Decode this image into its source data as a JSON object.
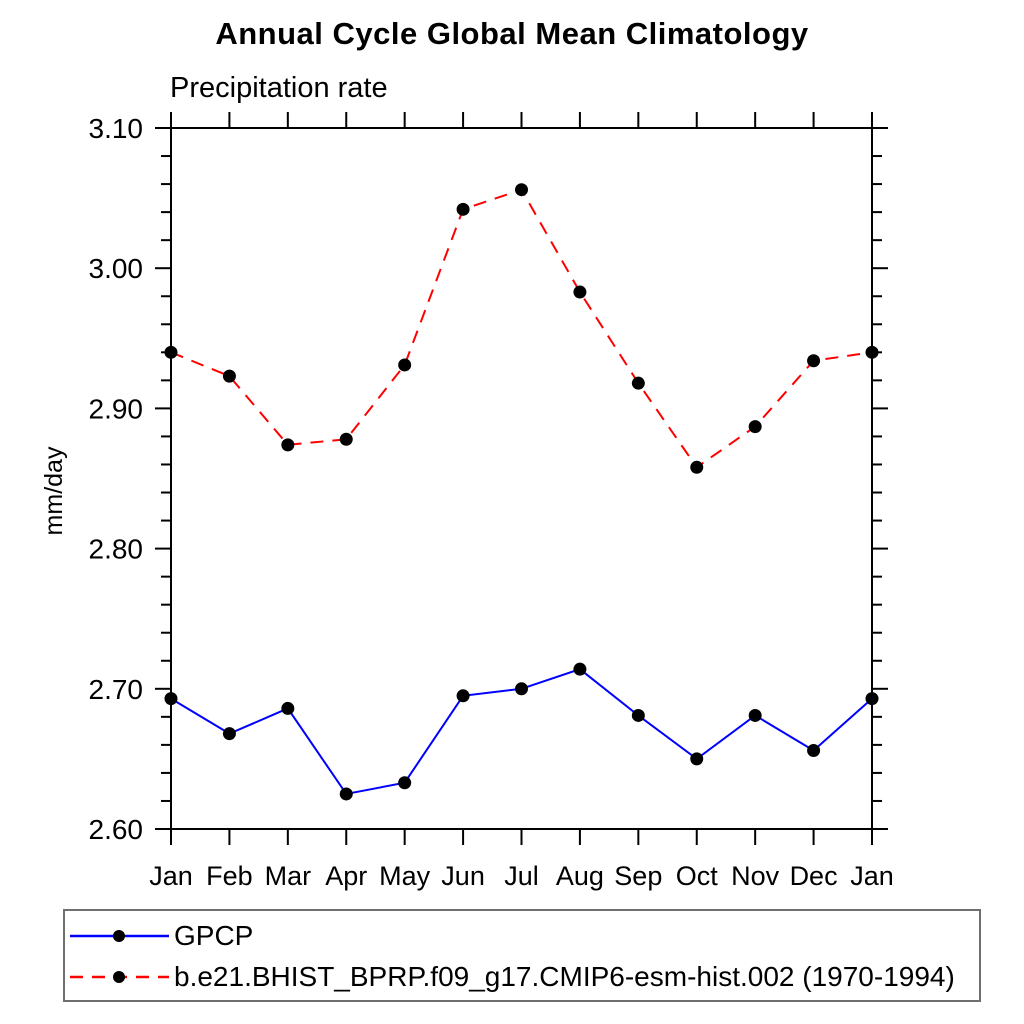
{
  "chart_data": {
    "type": "line",
    "title": "Annual Cycle Global Mean Climatology",
    "subtitle": "Precipitation rate",
    "xlabel": "",
    "ylabel": "mm/day",
    "categories": [
      "Jan",
      "Feb",
      "Mar",
      "Apr",
      "May",
      "Jun",
      "Jul",
      "Aug",
      "Sep",
      "Oct",
      "Nov",
      "Dec",
      "Jan"
    ],
    "ylim": [
      2.6,
      3.1
    ],
    "ytick_major": 0.1,
    "ytick_minor": 0.02,
    "y_tick_labels": [
      "2.60",
      "2.70",
      "2.80",
      "2.90",
      "3.00",
      "3.10"
    ],
    "grid": false,
    "legend_position": "bottom-left-box",
    "frame_color": "#000000",
    "series": [
      {
        "name": "GPCP",
        "color": "#0000ff",
        "line_style": "solid",
        "marker": "circle",
        "marker_color": "#000000",
        "values": [
          2.693,
          2.668,
          2.686,
          2.625,
          2.633,
          2.695,
          2.7,
          2.714,
          2.681,
          2.65,
          2.681,
          2.656,
          2.693
        ]
      },
      {
        "name": "b.e21.BHIST_BPRP.f09_g17.CMIP6-esm-hist.002 (1970-1994)",
        "color": "#ff0000",
        "line_style": "dashed",
        "marker": "circle",
        "marker_color": "#000000",
        "values": [
          2.94,
          2.923,
          2.874,
          2.878,
          2.931,
          3.042,
          3.056,
          2.983,
          2.918,
          2.858,
          2.887,
          2.934,
          2.94
        ]
      }
    ]
  }
}
